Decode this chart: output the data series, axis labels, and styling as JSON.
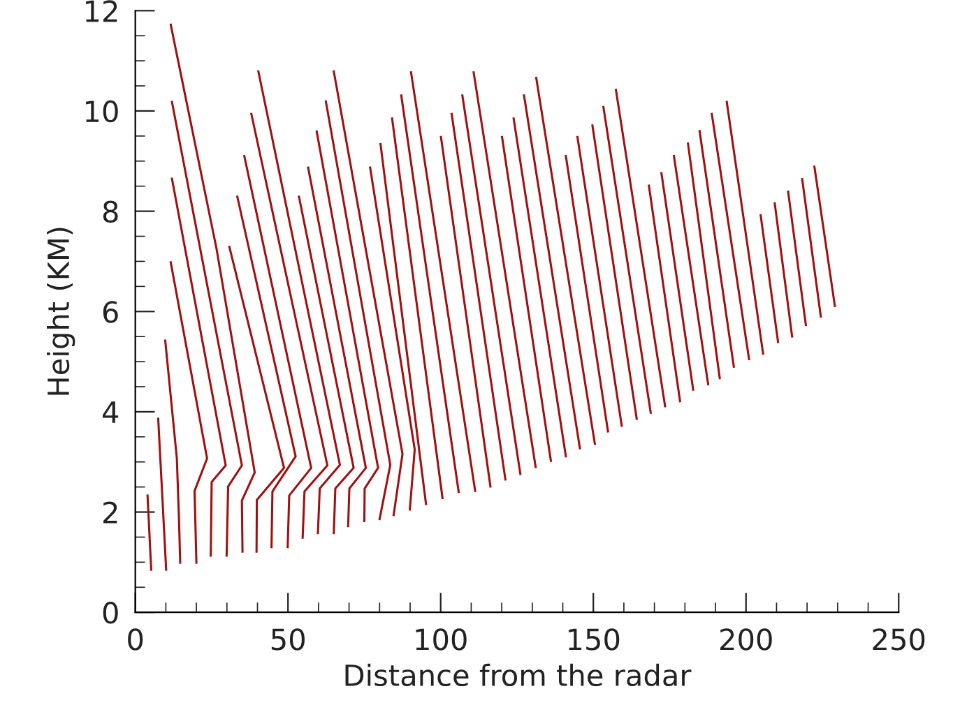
{
  "chart_data": {
    "type": "line",
    "xlabel": "Distance from the radar",
    "ylabel": "Height (KM)",
    "xlim": [
      0,
      250
    ],
    "xticks": [
      0,
      50,
      100,
      150,
      200,
      250
    ],
    "ylim": [
      0,
      12
    ],
    "yticks": [
      0,
      2,
      4,
      6,
      8,
      10,
      12
    ],
    "marker": "none",
    "line_style": "solid",
    "series": [
      {
        "color": "#a01010",
        "x": [
          4.0,
          5.2
        ],
        "values": [
          2.33,
          0.85
        ]
      },
      {
        "color": "#a01010",
        "x": [
          7.5,
          10.1
        ],
        "values": [
          3.86,
          0.85
        ]
      },
      {
        "color": "#a01010",
        "x": [
          9.8,
          13.6,
          14.3,
          14.7
        ],
        "values": [
          5.42,
          3.07,
          1.86,
          0.99
        ]
      },
      {
        "color": "#a01010",
        "x": [
          11.6,
          23.5,
          19.4,
          20.0
        ],
        "values": [
          6.98,
          3.07,
          2.42,
          0.99
        ]
      },
      {
        "color": "#a01010",
        "x": [
          12.0,
          29.6,
          25.0,
          24.7
        ],
        "values": [
          8.65,
          2.93,
          2.6,
          1.13
        ]
      },
      {
        "color": "#a01010",
        "x": [
          12.0,
          34.9,
          30.4,
          29.9
        ],
        "values": [
          10.18,
          2.93,
          2.51,
          1.13
        ]
      },
      {
        "color": "#a01010",
        "x": [
          11.6,
          26.6,
          39.1,
          34.9,
          35.1
        ],
        "values": [
          11.72,
          7.25,
          2.79,
          2.23,
          1.21
        ]
      },
      {
        "color": "#a01010",
        "x": [
          30.8,
          48.7,
          39.8,
          39.7
        ],
        "values": [
          7.29,
          2.88,
          2.24,
          1.21
        ]
      },
      {
        "color": "#a01010",
        "x": [
          33.4,
          52.5,
          44.9,
          44.6
        ],
        "values": [
          8.29,
          3.11,
          2.41,
          1.3
        ]
      },
      {
        "color": "#a01010",
        "x": [
          35.7,
          57.6,
          50.4,
          49.9
        ],
        "values": [
          9.1,
          2.88,
          2.33,
          1.3
        ]
      },
      {
        "color": "#a01010",
        "x": [
          38.0,
          62.9,
          55.4,
          54.8
        ],
        "values": [
          9.94,
          2.93,
          2.41,
          1.49
        ]
      },
      {
        "color": "#a01010",
        "x": [
          40.3,
          67.0,
          60.4,
          59.8
        ],
        "values": [
          10.79,
          2.94,
          2.47,
          1.58
        ]
      },
      {
        "color": "#a01010",
        "x": [
          53.6,
          71.5,
          65.5,
          65.0
        ],
        "values": [
          8.29,
          2.88,
          2.47,
          1.58
        ]
      },
      {
        "color": "#a01010",
        "x": [
          56.6,
          75.5,
          70.1,
          69.7
        ],
        "values": [
          8.87,
          2.88,
          2.47,
          1.72
        ]
      },
      {
        "color": "#a01010",
        "x": [
          59.4,
          79.5,
          75.1,
          75.0
        ],
        "values": [
          9.59,
          2.88,
          2.47,
          1.82
        ]
      },
      {
        "color": "#a01010",
        "x": [
          62.4,
          83.5,
          80.0
        ],
        "values": [
          10.19,
          2.94,
          1.86
        ]
      },
      {
        "color": "#a01010",
        "x": [
          65.0,
          87.5,
          84.6
        ],
        "values": [
          10.79,
          3.16,
          1.94
        ]
      },
      {
        "color": "#a01010",
        "x": [
          76.9,
          91.5,
          89.9
        ],
        "values": [
          8.87,
          3.25,
          2.05
        ]
      },
      {
        "color": "#a01010",
        "x": [
          80.3,
          95.2
        ],
        "values": [
          9.34,
          2.16
        ]
      },
      {
        "color": "#a01010",
        "x": [
          84.1,
          100.6
        ],
        "values": [
          9.85,
          2.28
        ]
      },
      {
        "color": "#a01010",
        "x": [
          87.1,
          105.9
        ],
        "values": [
          10.31,
          2.4
        ]
      },
      {
        "color": "#a01010",
        "x": [
          90.3,
          111.3
        ],
        "values": [
          10.77,
          2.42
        ]
      },
      {
        "color": "#a01010",
        "x": [
          100.1,
          116.3
        ],
        "values": [
          9.48,
          2.51
        ]
      },
      {
        "color": "#a01010",
        "x": [
          103.6,
          121.2
        ],
        "values": [
          9.94,
          2.65
        ]
      },
      {
        "color": "#a01010",
        "x": [
          107.1,
          126.1
        ],
        "values": [
          10.31,
          2.76
        ]
      },
      {
        "color": "#a01010",
        "x": [
          110.8,
          131.1
        ],
        "values": [
          10.77,
          2.9
        ]
      },
      {
        "color": "#a01010",
        "x": [
          120.1,
          136.1
        ],
        "values": [
          9.48,
          3.02
        ]
      },
      {
        "color": "#a01010",
        "x": [
          123.9,
          141.0
        ],
        "values": [
          9.85,
          3.11
        ]
      },
      {
        "color": "#a01010",
        "x": [
          127.3,
          145.6
        ],
        "values": [
          10.31,
          3.27
        ]
      },
      {
        "color": "#a01010",
        "x": [
          131.3,
          150.5
        ],
        "values": [
          10.66,
          3.36
        ]
      },
      {
        "color": "#a01010",
        "x": [
          141.0,
          154.8
        ],
        "values": [
          9.1,
          3.61
        ]
      },
      {
        "color": "#a01010",
        "x": [
          144.8,
          159.3
        ],
        "values": [
          9.48,
          3.72
        ]
      },
      {
        "color": "#a01010",
        "x": [
          149.7,
          164.2
        ],
        "values": [
          9.71,
          3.86
        ]
      },
      {
        "color": "#a01010",
        "x": [
          153.3,
          168.8
        ],
        "values": [
          10.08,
          3.98
        ]
      },
      {
        "color": "#a01010",
        "x": [
          157.4,
          173.5
        ],
        "values": [
          10.42,
          4.11
        ]
      },
      {
        "color": "#a01010",
        "x": [
          168.2,
          178.4
        ],
        "values": [
          8.51,
          4.21
        ]
      },
      {
        "color": "#a01010",
        "x": [
          172.3,
          182.7
        ],
        "values": [
          8.76,
          4.44
        ]
      },
      {
        "color": "#a01010",
        "x": [
          176.4,
          187.6
        ],
        "values": [
          9.1,
          4.55
        ]
      },
      {
        "color": "#a01010",
        "x": [
          181.0,
          191.4
        ],
        "values": [
          9.35,
          4.67
        ]
      },
      {
        "color": "#a01010",
        "x": [
          184.8,
          196.0
        ],
        "values": [
          9.6,
          4.9
        ]
      },
      {
        "color": "#a01010",
        "x": [
          188.8,
          201.0
        ],
        "values": [
          9.94,
          5.05
        ]
      },
      {
        "color": "#a01010",
        "x": [
          193.7,
          205.6
        ],
        "values": [
          10.18,
          5.16
        ]
      },
      {
        "color": "#a01010",
        "x": [
          204.8,
          210.5
        ],
        "values": [
          7.92,
          5.39
        ]
      },
      {
        "color": "#a01010",
        "x": [
          209.4,
          215.1
        ],
        "values": [
          8.16,
          5.5
        ]
      },
      {
        "color": "#a01010",
        "x": [
          213.8,
          219.6
        ],
        "values": [
          8.39,
          5.73
        ]
      },
      {
        "color": "#a01010",
        "x": [
          218.4,
          224.5
        ],
        "values": [
          8.64,
          5.9
        ]
      },
      {
        "color": "#a01010",
        "x": [
          222.4,
          229.1
        ],
        "values": [
          8.89,
          6.11
        ]
      }
    ]
  }
}
